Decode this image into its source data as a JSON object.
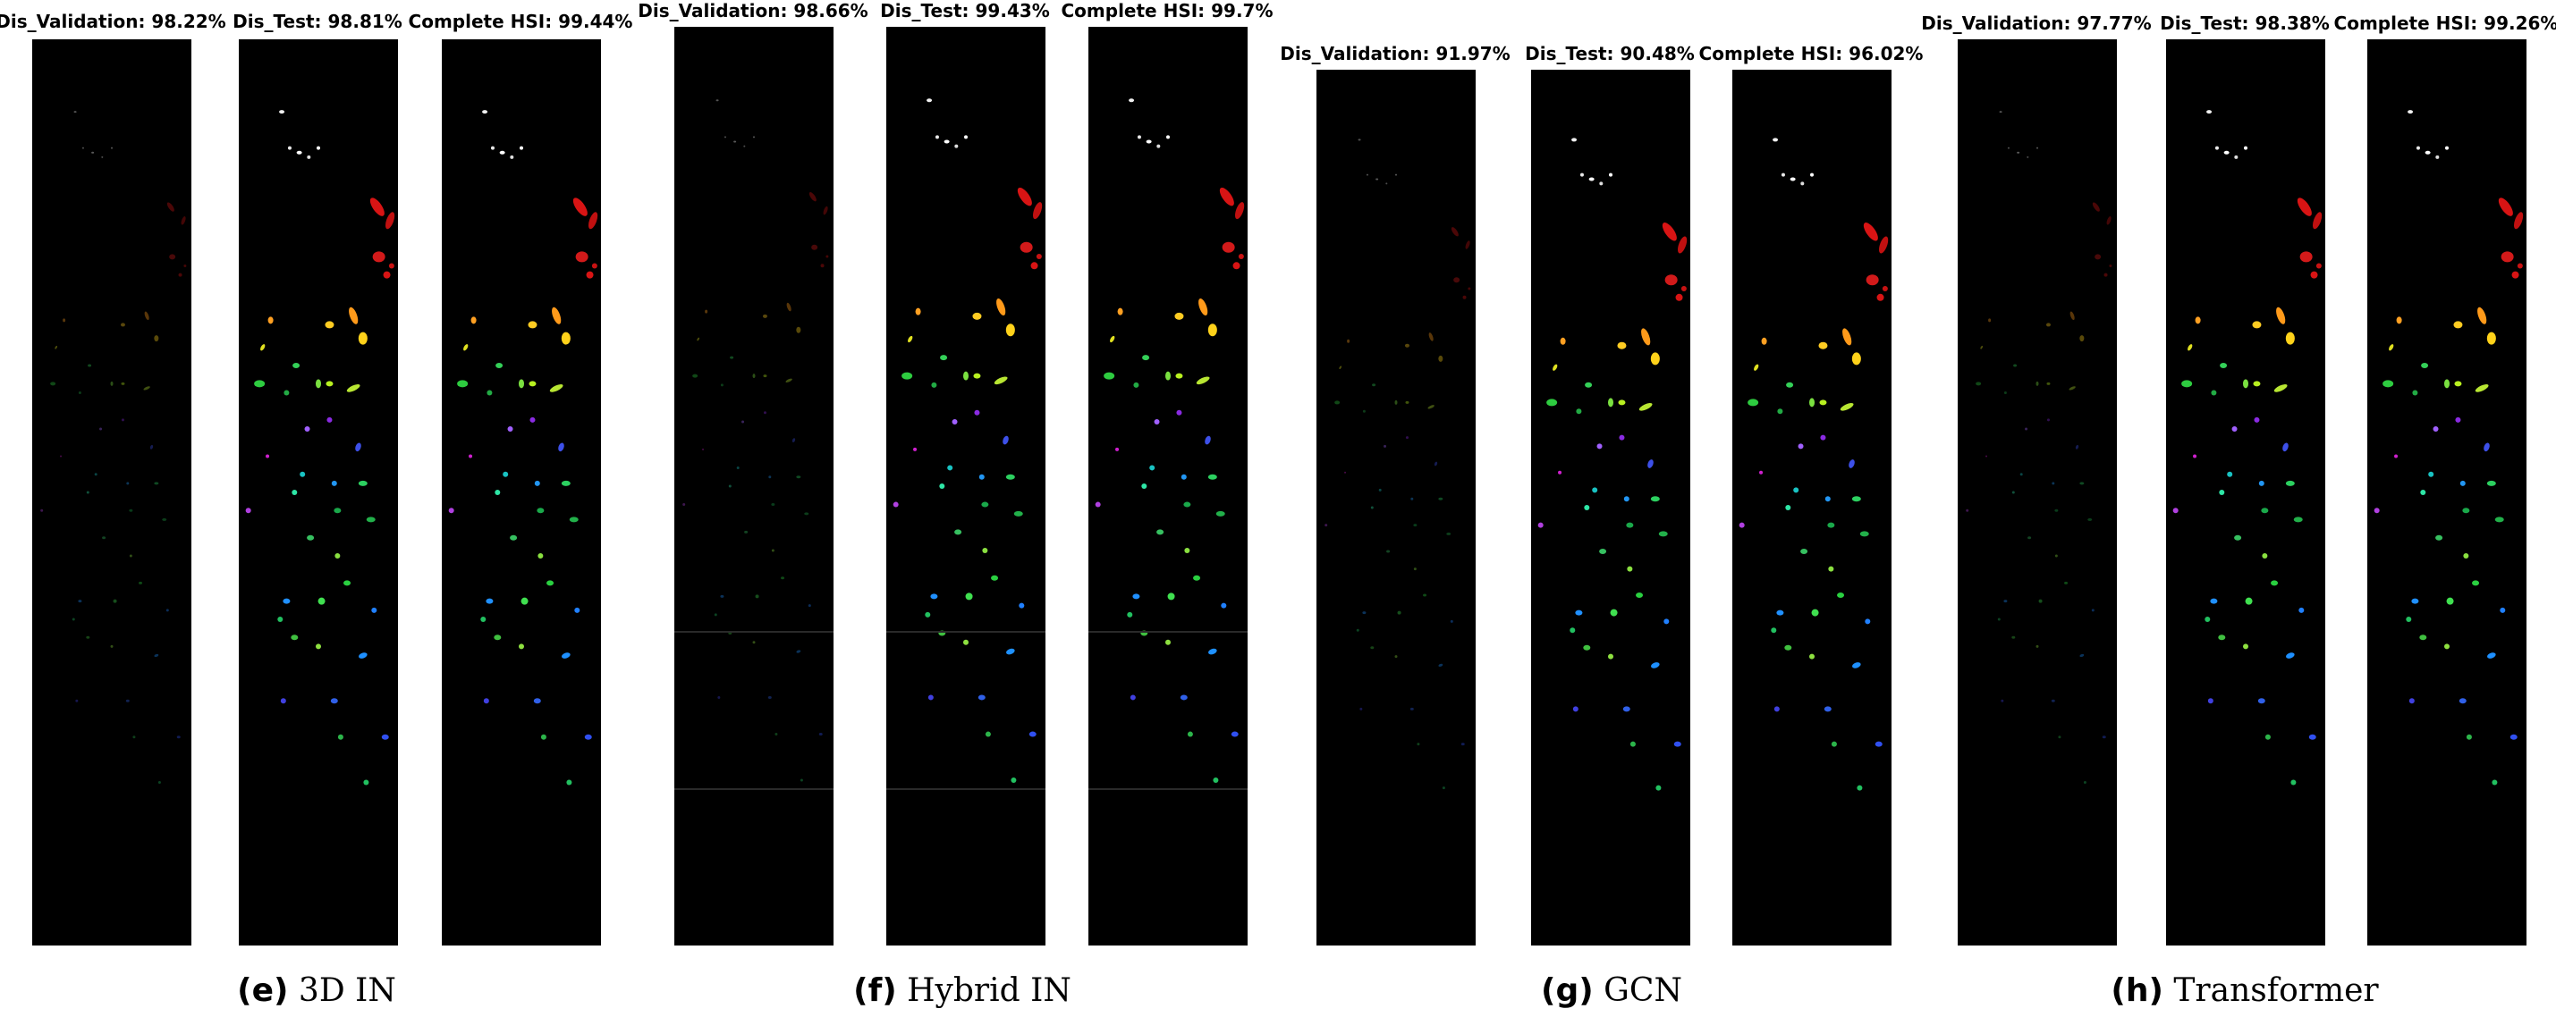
{
  "colors": {
    "background": "#000000",
    "page": "#ffffff"
  },
  "groups": [
    {
      "tag": "(e)",
      "method": "3D IN",
      "panels": [
        {
          "title": "Dis_Validation: 98.22%",
          "mode": "faint"
        },
        {
          "title": "Dis_Test: 98.81%",
          "mode": "full"
        },
        {
          "title": "Complete HSI: 99.44%",
          "mode": "full"
        }
      ]
    },
    {
      "tag": "(f)",
      "method": "Hybrid IN",
      "panels": [
        {
          "title": "Dis_Validation: 98.66%",
          "mode": "faint"
        },
        {
          "title": "Dis_Test: 99.43%",
          "mode": "full"
        },
        {
          "title": "Complete HSI: 99.7%",
          "mode": "full"
        }
      ]
    },
    {
      "tag": "(g)",
      "method": "GCN",
      "panels": [
        {
          "title": "Dis_Validation: 91.97%",
          "mode": "faint"
        },
        {
          "title": "Dis_Test: 90.48%",
          "mode": "full"
        },
        {
          "title": "Complete HSI: 96.02%",
          "mode": "full"
        }
      ]
    },
    {
      "tag": "(h)",
      "method": "Transformer",
      "panels": [
        {
          "title": "Dis_Validation: 97.77%",
          "mode": "faint"
        },
        {
          "title": "Dis_Test: 98.38%",
          "mode": "full"
        },
        {
          "title": "Complete HSI: 99.26%",
          "mode": "full"
        }
      ]
    }
  ]
}
